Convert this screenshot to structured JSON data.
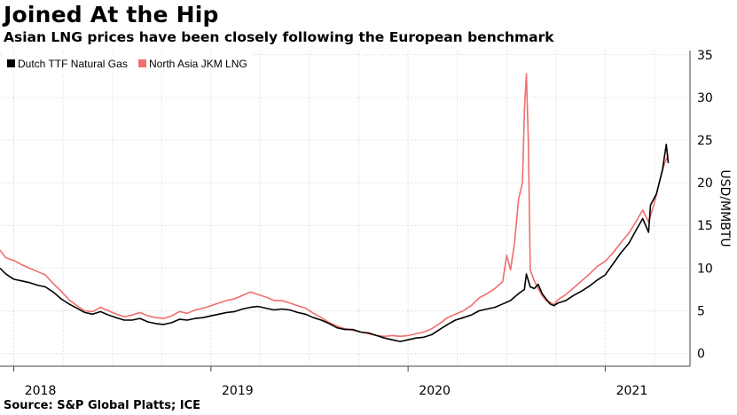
{
  "title": "Joined At the Hip",
  "subtitle": "Asian LNG prices have been closely following the European benchmark",
  "source": "Source: S&P Global Platts; ICE",
  "chart_data": {
    "type": "line",
    "ylabel": "USD/MMBTU",
    "ylim": [
      -1.5,
      35.5
    ],
    "yticks": [
      0,
      5,
      10,
      15,
      20,
      25,
      30,
      35
    ],
    "xlim": [
      2017.93,
      2021.43
    ],
    "xticks": [
      {
        "value": 2018.0,
        "label": "2018"
      },
      {
        "value": 2019.0,
        "label": "2019"
      },
      {
        "value": 2020.0,
        "label": "2020"
      },
      {
        "value": 2021.0,
        "label": "2021"
      }
    ],
    "quarter_gridlines": [
      2018.25,
      2018.5,
      2018.75,
      2019.25,
      2019.5,
      2019.75,
      2020.25,
      2020.5,
      2020.75,
      2021.25
    ],
    "legend": {
      "position": "top-left"
    },
    "series": [
      {
        "name": "Dutch TTF Natural Gas",
        "color": "#000000",
        "points": [
          [
            2017.93,
            10.0
          ],
          [
            2017.96,
            9.3
          ],
          [
            2018.0,
            8.7
          ],
          [
            2018.04,
            8.5
          ],
          [
            2018.08,
            8.3
          ],
          [
            2018.12,
            8.0
          ],
          [
            2018.16,
            7.8
          ],
          [
            2018.2,
            7.2
          ],
          [
            2018.24,
            6.4
          ],
          [
            2018.28,
            5.8
          ],
          [
            2018.32,
            5.3
          ],
          [
            2018.36,
            4.8
          ],
          [
            2018.4,
            4.6
          ],
          [
            2018.44,
            4.9
          ],
          [
            2018.48,
            4.5
          ],
          [
            2018.52,
            4.2
          ],
          [
            2018.56,
            3.9
          ],
          [
            2018.6,
            3.9
          ],
          [
            2018.64,
            4.1
          ],
          [
            2018.68,
            3.7
          ],
          [
            2018.72,
            3.5
          ],
          [
            2018.76,
            3.4
          ],
          [
            2018.8,
            3.6
          ],
          [
            2018.84,
            4.0
          ],
          [
            2018.88,
            3.9
          ],
          [
            2018.92,
            4.1
          ],
          [
            2018.96,
            4.2
          ],
          [
            2019.0,
            4.4
          ],
          [
            2019.04,
            4.6
          ],
          [
            2019.08,
            4.8
          ],
          [
            2019.12,
            4.9
          ],
          [
            2019.16,
            5.2
          ],
          [
            2019.2,
            5.4
          ],
          [
            2019.24,
            5.5
          ],
          [
            2019.28,
            5.3
          ],
          [
            2019.32,
            5.1
          ],
          [
            2019.36,
            5.2
          ],
          [
            2019.4,
            5.1
          ],
          [
            2019.44,
            4.8
          ],
          [
            2019.48,
            4.6
          ],
          [
            2019.52,
            4.2
          ],
          [
            2019.56,
            3.9
          ],
          [
            2019.6,
            3.5
          ],
          [
            2019.64,
            3.0
          ],
          [
            2019.68,
            2.8
          ],
          [
            2019.72,
            2.8
          ],
          [
            2019.76,
            2.5
          ],
          [
            2019.8,
            2.4
          ],
          [
            2019.84,
            2.1
          ],
          [
            2019.88,
            1.8
          ],
          [
            2019.92,
            1.6
          ],
          [
            2019.96,
            1.4
          ],
          [
            2020.0,
            1.6
          ],
          [
            2020.04,
            1.8
          ],
          [
            2020.08,
            1.9
          ],
          [
            2020.12,
            2.2
          ],
          [
            2020.16,
            2.8
          ],
          [
            2020.2,
            3.4
          ],
          [
            2020.24,
            3.9
          ],
          [
            2020.28,
            4.2
          ],
          [
            2020.32,
            4.5
          ],
          [
            2020.36,
            5.0
          ],
          [
            2020.4,
            5.2
          ],
          [
            2020.44,
            5.4
          ],
          [
            2020.48,
            5.8
          ],
          [
            2020.52,
            6.2
          ],
          [
            2020.56,
            7.0
          ],
          [
            2020.59,
            7.5
          ],
          [
            2020.6,
            9.3
          ],
          [
            2020.62,
            7.8
          ],
          [
            2020.64,
            7.6
          ],
          [
            2020.66,
            8.1
          ],
          [
            2020.68,
            7.0
          ],
          [
            2020.7,
            6.4
          ],
          [
            2020.72,
            5.8
          ],
          [
            2020.74,
            5.6
          ],
          [
            2020.76,
            5.9
          ],
          [
            2020.8,
            6.2
          ],
          [
            2020.84,
            6.8
          ],
          [
            2020.88,
            7.3
          ],
          [
            2020.92,
            7.9
          ],
          [
            2020.96,
            8.6
          ],
          [
            2021.0,
            9.2
          ],
          [
            2021.04,
            10.5
          ],
          [
            2021.08,
            11.8
          ],
          [
            2021.12,
            12.9
          ],
          [
            2021.16,
            14.6
          ],
          [
            2021.19,
            15.8
          ],
          [
            2021.22,
            14.2
          ],
          [
            2021.23,
            17.4
          ],
          [
            2021.26,
            18.7
          ],
          [
            2021.29,
            21.5
          ],
          [
            2021.31,
            24.5
          ],
          [
            2021.32,
            22.3
          ]
        ]
      },
      {
        "name": "North Asia JKM LNG",
        "color": "#f26d6d",
        "points": [
          [
            2017.93,
            12.1
          ],
          [
            2017.96,
            11.2
          ],
          [
            2018.0,
            10.9
          ],
          [
            2018.04,
            10.4
          ],
          [
            2018.08,
            10.0
          ],
          [
            2018.12,
            9.6
          ],
          [
            2018.16,
            9.2
          ],
          [
            2018.2,
            8.2
          ],
          [
            2018.24,
            7.3
          ],
          [
            2018.28,
            6.3
          ],
          [
            2018.32,
            5.6
          ],
          [
            2018.36,
            5.0
          ],
          [
            2018.4,
            4.9
          ],
          [
            2018.44,
            5.4
          ],
          [
            2018.48,
            5.0
          ],
          [
            2018.52,
            4.6
          ],
          [
            2018.56,
            4.3
          ],
          [
            2018.6,
            4.5
          ],
          [
            2018.64,
            4.8
          ],
          [
            2018.68,
            4.4
          ],
          [
            2018.72,
            4.2
          ],
          [
            2018.76,
            4.1
          ],
          [
            2018.8,
            4.4
          ],
          [
            2018.84,
            4.9
          ],
          [
            2018.88,
            4.7
          ],
          [
            2018.92,
            5.1
          ],
          [
            2018.96,
            5.3
          ],
          [
            2019.0,
            5.6
          ],
          [
            2019.04,
            5.9
          ],
          [
            2019.08,
            6.2
          ],
          [
            2019.12,
            6.4
          ],
          [
            2019.16,
            6.8
          ],
          [
            2019.2,
            7.2
          ],
          [
            2019.24,
            6.9
          ],
          [
            2019.28,
            6.6
          ],
          [
            2019.32,
            6.2
          ],
          [
            2019.36,
            6.2
          ],
          [
            2019.4,
            5.9
          ],
          [
            2019.44,
            5.6
          ],
          [
            2019.48,
            5.3
          ],
          [
            2019.52,
            4.7
          ],
          [
            2019.56,
            4.2
          ],
          [
            2019.6,
            3.6
          ],
          [
            2019.64,
            3.2
          ],
          [
            2019.68,
            2.9
          ],
          [
            2019.72,
            2.7
          ],
          [
            2019.76,
            2.5
          ],
          [
            2019.8,
            2.3
          ],
          [
            2019.84,
            2.1
          ],
          [
            2019.88,
            2.0
          ],
          [
            2019.92,
            2.1
          ],
          [
            2019.96,
            2.0
          ],
          [
            2020.0,
            2.1
          ],
          [
            2020.04,
            2.3
          ],
          [
            2020.08,
            2.5
          ],
          [
            2020.12,
            2.9
          ],
          [
            2020.16,
            3.5
          ],
          [
            2020.2,
            4.2
          ],
          [
            2020.24,
            4.6
          ],
          [
            2020.28,
            5.0
          ],
          [
            2020.32,
            5.6
          ],
          [
            2020.36,
            6.5
          ],
          [
            2020.4,
            7.0
          ],
          [
            2020.44,
            7.6
          ],
          [
            2020.48,
            8.4
          ],
          [
            2020.5,
            11.5
          ],
          [
            2020.52,
            9.8
          ],
          [
            2020.54,
            13.0
          ],
          [
            2020.56,
            18.0
          ],
          [
            2020.58,
            20.0
          ],
          [
            2020.59,
            28.5
          ],
          [
            2020.6,
            32.8
          ],
          [
            2020.61,
            25.0
          ],
          [
            2020.62,
            9.8
          ],
          [
            2020.64,
            8.5
          ],
          [
            2020.66,
            7.6
          ],
          [
            2020.68,
            6.8
          ],
          [
            2020.7,
            6.2
          ],
          [
            2020.72,
            6.0
          ],
          [
            2020.74,
            5.7
          ],
          [
            2020.76,
            6.3
          ],
          [
            2020.8,
            6.9
          ],
          [
            2020.84,
            7.7
          ],
          [
            2020.88,
            8.5
          ],
          [
            2020.92,
            9.3
          ],
          [
            2020.96,
            10.2
          ],
          [
            2021.0,
            10.8
          ],
          [
            2021.04,
            11.8
          ],
          [
            2021.08,
            13.0
          ],
          [
            2021.12,
            14.1
          ],
          [
            2021.16,
            15.6
          ],
          [
            2021.19,
            16.8
          ],
          [
            2021.22,
            15.4
          ],
          [
            2021.25,
            17.7
          ],
          [
            2021.28,
            20.6
          ],
          [
            2021.3,
            22.2
          ],
          [
            2021.32,
            23.3
          ]
        ]
      }
    ]
  }
}
